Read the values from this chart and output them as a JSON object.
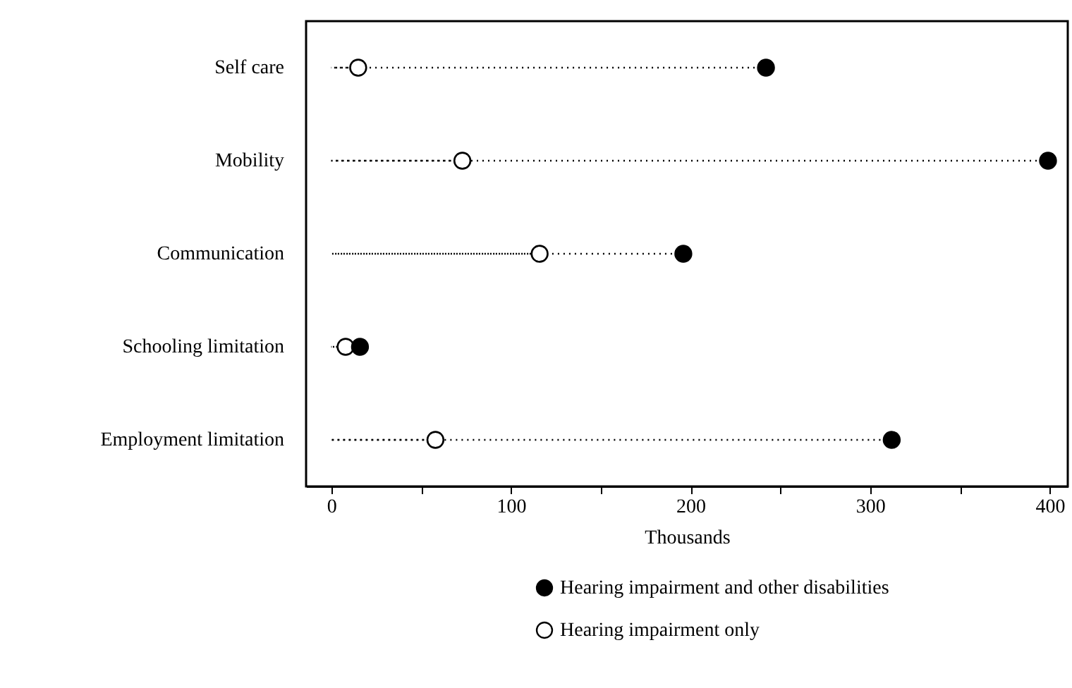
{
  "chart_data": {
    "type": "lollipop",
    "xlabel": "Thousands",
    "categories": [
      "Self care",
      "Mobility",
      "Communication",
      "Schooling limitation",
      "Employment limitation"
    ],
    "series": [
      {
        "name": "Hearing impairment and other disabilities",
        "color": "#000000",
        "values": [
          242,
          399,
          196,
          16,
          312
        ]
      },
      {
        "name": "Hearing impairment only",
        "color": "#ffffff",
        "values": [
          15,
          73,
          116,
          8,
          58
        ]
      }
    ],
    "xlim": [
      -14,
      410
    ],
    "xticks": [
      0,
      {
        "value": 50,
        "label": null
      },
      100,
      {
        "value": 150,
        "label": null
      },
      200,
      {
        "value": 250,
        "label": null
      },
      300,
      {
        "value": 350,
        "label": null
      },
      400
    ],
    "orientation": "horizontal",
    "marker": "circle",
    "line_style": "dotted",
    "legend": "bottom",
    "grid": false
  }
}
